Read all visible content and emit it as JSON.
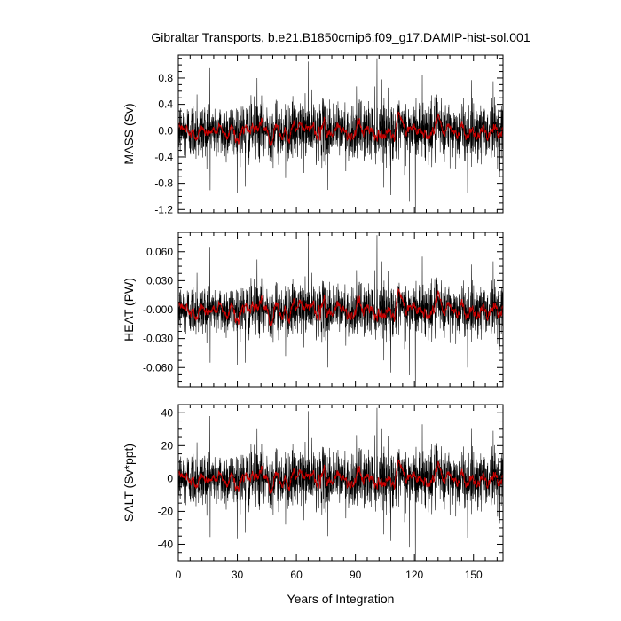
{
  "title": "Gibraltar Transports, b.e21.B1850cmip6.f09_g17.DAMIP-hist-sol.001",
  "xlabel": "Years of Integration",
  "colors": {
    "raw": "#000000",
    "smoothed": "#cc0000",
    "frame": "#000000",
    "background": "#ffffff"
  },
  "chart_data": [
    {
      "type": "line",
      "ylabel": "MASS (Sv)",
      "xlim": [
        0,
        165
      ],
      "ylim": [
        -1.25,
        1.15
      ],
      "xticks": [
        0,
        30,
        60,
        90,
        120,
        150
      ],
      "xtick_labels": [
        "0",
        "30",
        "60",
        "90",
        "120",
        "150"
      ],
      "yticks": [
        -1.2,
        -0.8,
        -0.4,
        0.0,
        0.4,
        0.8
      ],
      "ytick_labels": [
        "-1.2",
        "-0.8",
        "-0.4",
        "0.0",
        "0.4",
        "0.8"
      ],
      "series": [
        {
          "style": "monthly",
          "color": "#000000",
          "noise_sd": 0.28,
          "spikes": [
            [
              9.5,
              0.55
            ],
            [
              16,
              0.95
            ],
            [
              34,
              -0.85
            ],
            [
              40,
              0.8
            ],
            [
              54.5,
              -0.72
            ],
            [
              66,
              1.05
            ],
            [
              76,
              -0.9
            ],
            [
              101,
              1.1
            ],
            [
              103.5,
              0.78
            ],
            [
              108,
              -0.98
            ],
            [
              117.5,
              -1.08
            ],
            [
              120.5,
              -1.25
            ],
            [
              124,
              0.85
            ],
            [
              147,
              -0.95
            ],
            [
              160,
              0.75
            ]
          ]
        },
        {
          "style": "smoothed",
          "color": "#cc0000",
          "amp": 0.08
        }
      ]
    },
    {
      "type": "line",
      "ylabel": "HEAT (PW)",
      "xlim": [
        0,
        165
      ],
      "ylim": [
        -0.08,
        0.08
      ],
      "xticks": [
        0,
        30,
        60,
        90,
        120,
        150
      ],
      "xtick_labels": [
        "0",
        "30",
        "60",
        "90",
        "120",
        "150"
      ],
      "yticks": [
        -0.06,
        -0.03,
        0.0,
        0.03,
        0.06
      ],
      "ytick_labels": [
        "-0.060",
        "-0.030",
        "-0.000",
        "0.030",
        "0.060"
      ],
      "series": [
        {
          "style": "monthly",
          "color": "#000000",
          "noise_sd": 0.017,
          "spikes": [
            [
              9.5,
              0.038
            ],
            [
              16,
              0.065
            ],
            [
              34,
              -0.055
            ],
            [
              40,
              0.052
            ],
            [
              54.5,
              -0.048
            ],
            [
              66,
              0.08
            ],
            [
              76,
              -0.06
            ],
            [
              101,
              0.077
            ],
            [
              103.5,
              0.05
            ],
            [
              108,
              -0.065
            ],
            [
              117.5,
              -0.068
            ],
            [
              120.5,
              -0.08
            ],
            [
              124,
              0.055
            ],
            [
              147,
              -0.06
            ],
            [
              160,
              0.05
            ]
          ]
        },
        {
          "style": "smoothed",
          "color": "#cc0000",
          "amp": 0.006
        }
      ]
    },
    {
      "type": "line",
      "ylabel": "SALT (Sv*ppt)",
      "xlim": [
        0,
        165
      ],
      "ylim": [
        -50,
        45
      ],
      "xticks": [
        0,
        30,
        60,
        90,
        120,
        150
      ],
      "xtick_labels": [
        "0",
        "30",
        "60",
        "90",
        "120",
        "150"
      ],
      "yticks": [
        -40,
        -20,
        0,
        20,
        40
      ],
      "ytick_labels": [
        "-40",
        "-20",
        "0",
        "20",
        "40"
      ],
      "series": [
        {
          "style": "monthly",
          "color": "#000000",
          "noise_sd": 11,
          "spikes": [
            [
              9.5,
              22
            ],
            [
              16,
              38
            ],
            [
              34,
              -33
            ],
            [
              40,
              30
            ],
            [
              54.5,
              -28
            ],
            [
              66,
              41
            ],
            [
              76,
              -35
            ],
            [
              101,
              43
            ],
            [
              103.5,
              30
            ],
            [
              108,
              -38
            ],
            [
              117.5,
              -42
            ],
            [
              120.5,
              -50
            ],
            [
              124,
              33
            ],
            [
              147,
              -36
            ],
            [
              160,
              29
            ]
          ]
        },
        {
          "style": "smoothed",
          "color": "#cc0000",
          "amp": 3.2
        }
      ]
    }
  ]
}
